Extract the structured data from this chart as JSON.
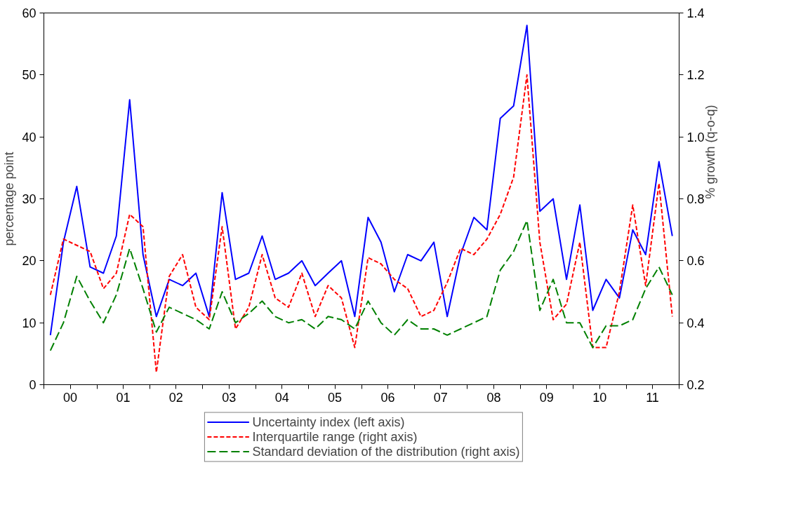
{
  "chart_data": {
    "type": "line",
    "ylabel": "percentage point",
    "y2label": "% growth (q-o-q)",
    "x": [
      "2000-02-15",
      "2000-05-15",
      "2000-08-15",
      "2000-11-15",
      "2001-02-15",
      "2001-05-15",
      "2001-08-15",
      "2001-11-15",
      "2002-02-15",
      "2002-05-15",
      "2002-08-15",
      "2002-11-15",
      "2003-02-15",
      "2003-05-15",
      "2003-08-15",
      "2003-11-15",
      "2004-02-15",
      "2004-05-15",
      "2004-08-15",
      "2004-11-15",
      "2005-02-15",
      "2005-05-15",
      "2005-08-15",
      "2005-11-15",
      "2006-02-15",
      "2006-05-15",
      "2006-08-15",
      "2006-11-15",
      "2007-02-15",
      "2007-05-15",
      "2007-08-15",
      "2007-11-15",
      "2008-02-15",
      "2008-05-15",
      "2008-08-15",
      "2008-11-15",
      "2009-02-15",
      "2009-05-15",
      "2009-08-15",
      "2009-11-15",
      "2010-02-15",
      "2010-05-15",
      "2010-08-15",
      "2010-11-15",
      "2011-02-15",
      "2011-05-15",
      "2011-08-15",
      "2011-11-15"
    ],
    "series": [
      {
        "name": "Uncertainty index (left axis)",
        "color": "#0000ff",
        "line_style": "solid",
        "values": [
          8,
          23,
          32,
          19,
          18,
          24,
          46,
          21,
          11,
          17,
          16,
          18,
          11,
          31,
          17,
          18,
          24,
          17,
          18,
          20,
          16,
          18,
          20,
          11,
          27,
          23,
          15,
          21,
          20,
          23,
          11,
          21,
          27,
          25,
          43,
          45,
          58,
          28,
          30,
          17,
          29,
          12,
          17,
          14,
          25,
          21,
          36,
          24
        ]
      },
      {
        "name": "Interquartile range (right axis)",
        "color": "#ff0000",
        "line_style": "dashed",
        "axis": "y2",
        "values": [
          0.49,
          0.67,
          0.65,
          0.63,
          0.51,
          0.56,
          0.75,
          0.71,
          0.24,
          0.55,
          0.62,
          0.45,
          0.41,
          0.71,
          0.38,
          0.45,
          0.62,
          0.48,
          0.45,
          0.56,
          0.42,
          0.52,
          0.48,
          0.32,
          0.61,
          0.59,
          0.54,
          0.51,
          0.42,
          0.44,
          0.53,
          0.64,
          0.62,
          0.67,
          0.75,
          0.87,
          1.2,
          0.66,
          0.41,
          0.46,
          0.66,
          0.32,
          0.32,
          0.5,
          0.78,
          0.52,
          0.85,
          0.42
        ]
      },
      {
        "name": "Standard deviation of the distribution (right axis)",
        "color": "#008000",
        "line_style": "dashed",
        "axis": "y2",
        "values": [
          0.31,
          0.4,
          0.55,
          0.47,
          0.4,
          0.49,
          0.64,
          0.51,
          0.37,
          0.45,
          0.43,
          0.41,
          0.38,
          0.5,
          0.4,
          0.43,
          0.47,
          0.42,
          0.4,
          0.41,
          0.38,
          0.42,
          0.41,
          0.38,
          0.47,
          0.4,
          0.36,
          0.41,
          0.38,
          0.38,
          0.36,
          0.38,
          0.4,
          0.42,
          0.57,
          0.63,
          0.73,
          0.44,
          0.54,
          0.4,
          0.4,
          0.32,
          0.39,
          0.39,
          0.41,
          0.51,
          0.58,
          0.49
        ]
      }
    ],
    "xlim": [
      "2000-01-01",
      "2012-01-01"
    ],
    "xticks": [
      {
        "value": "2000-01-01",
        "label": null
      },
      {
        "value": "2000-07-01",
        "label": "00"
      },
      {
        "value": "2001-01-01",
        "label": null
      },
      {
        "value": "2001-07-01",
        "label": "01"
      },
      {
        "value": "2002-01-01",
        "label": null
      },
      {
        "value": "2002-07-01",
        "label": "02"
      },
      {
        "value": "2003-01-01",
        "label": null
      },
      {
        "value": "2003-07-01",
        "label": "03"
      },
      {
        "value": "2004-01-01",
        "label": null
      },
      {
        "value": "2004-07-01",
        "label": "04"
      },
      {
        "value": "2005-01-01",
        "label": null
      },
      {
        "value": "2005-07-01",
        "label": "05"
      },
      {
        "value": "2006-01-01",
        "label": null
      },
      {
        "value": "2006-07-01",
        "label": "06"
      },
      {
        "value": "2007-01-01",
        "label": null
      },
      {
        "value": "2007-07-01",
        "label": "07"
      },
      {
        "value": "2008-01-01",
        "label": null
      },
      {
        "value": "2008-07-01",
        "label": "08"
      },
      {
        "value": "2009-01-01",
        "label": null
      },
      {
        "value": "2009-07-01",
        "label": "09"
      },
      {
        "value": "2010-01-01",
        "label": null
      },
      {
        "value": "2010-07-01",
        "label": "10"
      },
      {
        "value": "2011-01-01",
        "label": null
      },
      {
        "value": "2011-07-01",
        "label": "11"
      },
      {
        "value": "2012-01-01",
        "label": null
      }
    ],
    "ylim": [
      0,
      60
    ],
    "yticks": [
      0,
      10,
      20,
      30,
      40,
      50,
      60
    ],
    "y2lim": [
      0.2,
      1.4
    ],
    "y2ticks": [
      {
        "value": 0.2,
        "label": "0.2"
      },
      {
        "value": 0.4,
        "label": "0.4"
      },
      {
        "value": 0.6,
        "label": "0.6"
      },
      {
        "value": 0.8,
        "label": "0.8"
      },
      {
        "value": 1.0,
        "label": "1.0"
      },
      {
        "value": 1.2,
        "label": "1.2"
      },
      {
        "value": 1.4,
        "label": "1.4"
      }
    ],
    "legend": "bottom"
  }
}
